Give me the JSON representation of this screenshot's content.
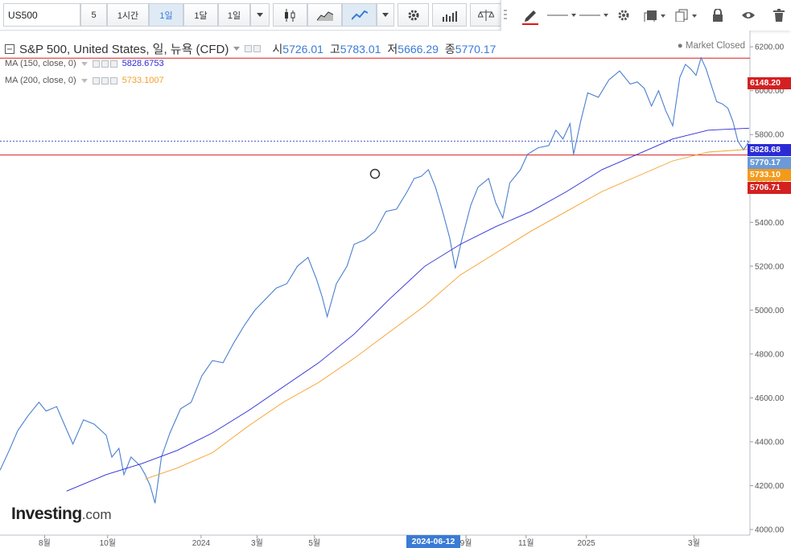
{
  "toolbar": {
    "symbol": "US500",
    "interval_buttons": [
      "5",
      "1시간",
      "1일",
      "1달",
      "1일"
    ],
    "active_interval_index": 2
  },
  "legend": {
    "title": "S&P 500, United States, 일, 뉴욕 (CFD)",
    "ohlc": [
      {
        "label": "시",
        "value": "5726.01"
      },
      {
        "label": "고",
        "value": "5783.01"
      },
      {
        "label": "저",
        "value": "5666.29"
      },
      {
        "label": "종",
        "value": "5770.17"
      }
    ],
    "ma150": {
      "label": "MA (150, close, 0)",
      "value": "5828.6753",
      "color": "#2b2bd6"
    },
    "ma200": {
      "label": "MA (200, close, 0)",
      "value": "5733.1007",
      "color": "#f4a02a"
    },
    "market_status": "Market Closed"
  },
  "price_tags": [
    {
      "value": "6148.20",
      "color": "#d42020"
    },
    {
      "value": "5828.68",
      "color": "#2b2bd6"
    },
    {
      "value": "5770.17",
      "color": "#6b9ad6"
    },
    {
      "value": "5733.10",
      "color": "#f49a1a"
    },
    {
      "value": "5706.71",
      "color": "#d42020"
    }
  ],
  "crosshair_date": "2024-06-12",
  "watermark": {
    "brand": "Investing",
    "suffix": ".com"
  },
  "chart_data": {
    "type": "line",
    "title": "S&P 500, United States, 일, 뉴욕 (CFD)",
    "y_ticks": [
      4000,
      4200,
      4400,
      4600,
      4800,
      5000,
      5200,
      5400,
      5600,
      5800,
      6000,
      6200
    ],
    "x_ticks": [
      {
        "label": "8월",
        "t": 0.063
      },
      {
        "label": "10월",
        "t": 0.152
      },
      {
        "label": "2024",
        "t": 0.284
      },
      {
        "label": "3월",
        "t": 0.363
      },
      {
        "label": "5월",
        "t": 0.444
      },
      {
        "label": "9월",
        "t": 0.658
      },
      {
        "label": "11월",
        "t": 0.743
      },
      {
        "label": "2025",
        "t": 0.828
      },
      {
        "label": "3월",
        "t": 0.98
      }
    ],
    "ylim": [
      4000,
      6230
    ],
    "horizontal_lines": [
      {
        "value": 6148.2,
        "color": "#d42020"
      },
      {
        "value": 5706.71,
        "color": "#d42020"
      },
      {
        "value": 5770.17,
        "color": "#3a5fbf",
        "dotted": true
      }
    ],
    "series": [
      {
        "name": "S&P 500",
        "color": "#4a7fd0",
        "points": [
          [
            0,
            4270
          ],
          [
            0.013,
            4360
          ],
          [
            0.025,
            4450
          ],
          [
            0.04,
            4520
          ],
          [
            0.055,
            4580
          ],
          [
            0.065,
            4540
          ],
          [
            0.08,
            4560
          ],
          [
            0.092,
            4470
          ],
          [
            0.103,
            4390
          ],
          [
            0.118,
            4500
          ],
          [
            0.133,
            4480
          ],
          [
            0.15,
            4430
          ],
          [
            0.158,
            4330
          ],
          [
            0.168,
            4370
          ],
          [
            0.175,
            4250
          ],
          [
            0.185,
            4330
          ],
          [
            0.198,
            4290
          ],
          [
            0.205,
            4250
          ],
          [
            0.212,
            4200
          ],
          [
            0.219,
            4120
          ],
          [
            0.228,
            4330
          ],
          [
            0.24,
            4440
          ],
          [
            0.255,
            4550
          ],
          [
            0.27,
            4580
          ],
          [
            0.285,
            4700
          ],
          [
            0.3,
            4770
          ],
          [
            0.315,
            4760
          ],
          [
            0.33,
            4850
          ],
          [
            0.345,
            4930
          ],
          [
            0.36,
            5000
          ],
          [
            0.375,
            5050
          ],
          [
            0.39,
            5100
          ],
          [
            0.405,
            5120
          ],
          [
            0.42,
            5200
          ],
          [
            0.435,
            5240
          ],
          [
            0.447,
            5140
          ],
          [
            0.455,
            5060
          ],
          [
            0.462,
            4970
          ],
          [
            0.475,
            5120
          ],
          [
            0.49,
            5200
          ],
          [
            0.5,
            5300
          ],
          [
            0.515,
            5320
          ],
          [
            0.53,
            5360
          ],
          [
            0.545,
            5450
          ],
          [
            0.56,
            5460
          ],
          [
            0.575,
            5540
          ],
          [
            0.585,
            5600
          ],
          [
            0.595,
            5610
          ],
          [
            0.605,
            5640
          ],
          [
            0.615,
            5560
          ],
          [
            0.625,
            5450
          ],
          [
            0.635,
            5330
          ],
          [
            0.643,
            5190
          ],
          [
            0.652,
            5320
          ],
          [
            0.665,
            5480
          ],
          [
            0.675,
            5560
          ],
          [
            0.69,
            5600
          ],
          [
            0.7,
            5490
          ],
          [
            0.71,
            5420
          ],
          [
            0.72,
            5580
          ],
          [
            0.735,
            5640
          ],
          [
            0.745,
            5710
          ],
          [
            0.76,
            5740
          ],
          [
            0.775,
            5750
          ],
          [
            0.785,
            5820
          ],
          [
            0.795,
            5780
          ],
          [
            0.805,
            5850
          ],
          [
            0.81,
            5710
          ],
          [
            0.82,
            5860
          ],
          [
            0.83,
            5990
          ],
          [
            0.845,
            5970
          ],
          [
            0.86,
            6050
          ],
          [
            0.875,
            6090
          ],
          [
            0.89,
            6030
          ],
          [
            0.9,
            6040
          ],
          [
            0.91,
            6010
          ],
          [
            0.92,
            5930
          ],
          [
            0.93,
            6000
          ],
          [
            0.94,
            5910
          ],
          [
            0.95,
            5840
          ],
          [
            0.96,
            6060
          ],
          [
            0.968,
            6120
          ],
          [
            0.975,
            6100
          ],
          [
            0.983,
            6070
          ],
          [
            0.99,
            6150
          ],
          [
            0.997,
            6100
          ],
          [
            1.005,
            6020
          ],
          [
            1.012,
            5950
          ],
          [
            1.02,
            5940
          ],
          [
            1.028,
            5920
          ],
          [
            1.035,
            5860
          ],
          [
            1.042,
            5770
          ],
          [
            1.05,
            5730
          ],
          [
            1.058,
            5770
          ]
        ]
      },
      {
        "name": "MA (150, close, 0)",
        "color": "#2b2bd6",
        "points": [
          [
            0.094,
            4175
          ],
          [
            0.15,
            4250
          ],
          [
            0.2,
            4300
          ],
          [
            0.25,
            4360
          ],
          [
            0.3,
            4440
          ],
          [
            0.35,
            4540
          ],
          [
            0.4,
            4650
          ],
          [
            0.45,
            4760
          ],
          [
            0.5,
            4890
          ],
          [
            0.55,
            5050
          ],
          [
            0.6,
            5200
          ],
          [
            0.65,
            5300
          ],
          [
            0.7,
            5380
          ],
          [
            0.75,
            5450
          ],
          [
            0.8,
            5540
          ],
          [
            0.85,
            5640
          ],
          [
            0.9,
            5710
          ],
          [
            0.95,
            5780
          ],
          [
            1.0,
            5820
          ],
          [
            1.058,
            5829
          ]
        ]
      },
      {
        "name": "MA (200, close, 0)",
        "color": "#f4a02a",
        "points": [
          [
            0.205,
            4230
          ],
          [
            0.25,
            4280
          ],
          [
            0.3,
            4350
          ],
          [
            0.35,
            4470
          ],
          [
            0.4,
            4580
          ],
          [
            0.45,
            4670
          ],
          [
            0.5,
            4780
          ],
          [
            0.55,
            4900
          ],
          [
            0.6,
            5020
          ],
          [
            0.65,
            5160
          ],
          [
            0.7,
            5260
          ],
          [
            0.75,
            5360
          ],
          [
            0.8,
            5450
          ],
          [
            0.85,
            5540
          ],
          [
            0.9,
            5610
          ],
          [
            0.95,
            5680
          ],
          [
            1.0,
            5720
          ],
          [
            1.058,
            5733
          ]
        ]
      }
    ]
  }
}
